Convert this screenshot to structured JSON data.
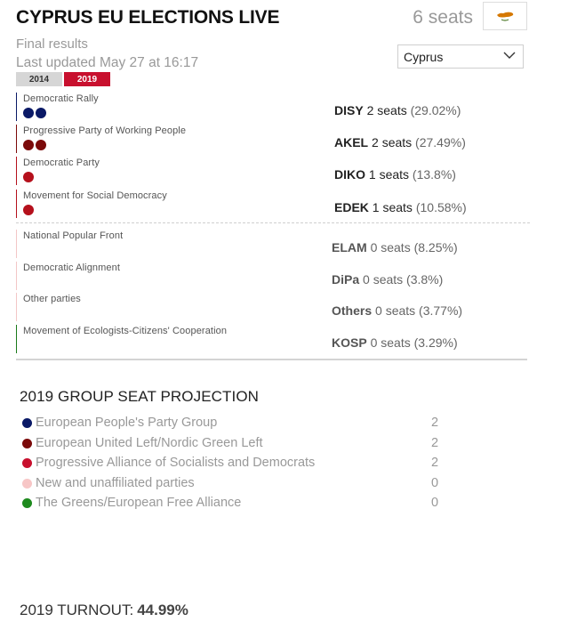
{
  "header": {
    "title": "CYPRUS EU ELECTIONS LIVE",
    "seats_total": "6 seats",
    "flag_icon": "cyprus-flag-icon"
  },
  "status": {
    "final": "Final results",
    "updated": "Last updated May 27 at 16:17"
  },
  "year_tabs": [
    {
      "label": "2014",
      "active": false
    },
    {
      "label": "2019",
      "active": true
    }
  ],
  "region_select": {
    "value": "Cyprus"
  },
  "parties": [
    {
      "name": "Democratic Rally",
      "abbr": "DISY",
      "seats": "2 seats",
      "pct": "(29.02%)",
      "color": "#0a1966",
      "seat_count": 2
    },
    {
      "name": "Progressive Party of Working People",
      "abbr": "AKEL",
      "seats": "2 seats",
      "pct": "(27.49%)",
      "color": "#7b0a0a",
      "seat_count": 2
    },
    {
      "name": "Democratic Party",
      "abbr": "DIKO",
      "seats": "1 seats",
      "pct": "(13.8%)",
      "color": "#b5101c",
      "seat_count": 1
    },
    {
      "name": "Movement for Social Democracy",
      "abbr": "EDEK",
      "seats": "1 seats",
      "pct": "(10.58%)",
      "color": "#b5101c",
      "seat_count": 1
    },
    {
      "name": "National Popular Front",
      "abbr": "ELAM",
      "seats": "0 seats",
      "pct": "(8.25%)",
      "color": "#f3c7c7",
      "seat_count": 0
    },
    {
      "name": "Democratic Alignment",
      "abbr": "DiPa",
      "seats": "0 seats",
      "pct": "(3.8%)",
      "color": "#f3c7c7",
      "seat_count": 0
    },
    {
      "name": "Other parties",
      "abbr": "Others",
      "seats": "0 seats",
      "pct": "(3.77%)",
      "color": "#f3c7c7",
      "seat_count": 0
    },
    {
      "name": "Movement of Ecologists-Citizens' Cooperation",
      "abbr": "KOSP",
      "seats": "0 seats",
      "pct": "(3.29%)",
      "color": "#1a7a1a",
      "seat_count": 0
    }
  ],
  "projection": {
    "title": "2019 GROUP SEAT PROJECTION",
    "groups": [
      {
        "name": "European People's Party Group",
        "value": "2",
        "color": "#0a1966"
      },
      {
        "name": "European United Left/Nordic Green Left",
        "value": "2",
        "color": "#7b0a0a"
      },
      {
        "name": "Progressive Alliance of Socialists and Democrats",
        "value": "2",
        "color": "#c8102e"
      },
      {
        "name": "New and unaffiliated parties",
        "value": "0",
        "color": "#f7c6c6"
      },
      {
        "name": "The Greens/European Free Alliance",
        "value": "0",
        "color": "#1e8a1e"
      }
    ]
  },
  "turnout": {
    "label": "2019 TURNOUT:",
    "value": "44.99%"
  }
}
